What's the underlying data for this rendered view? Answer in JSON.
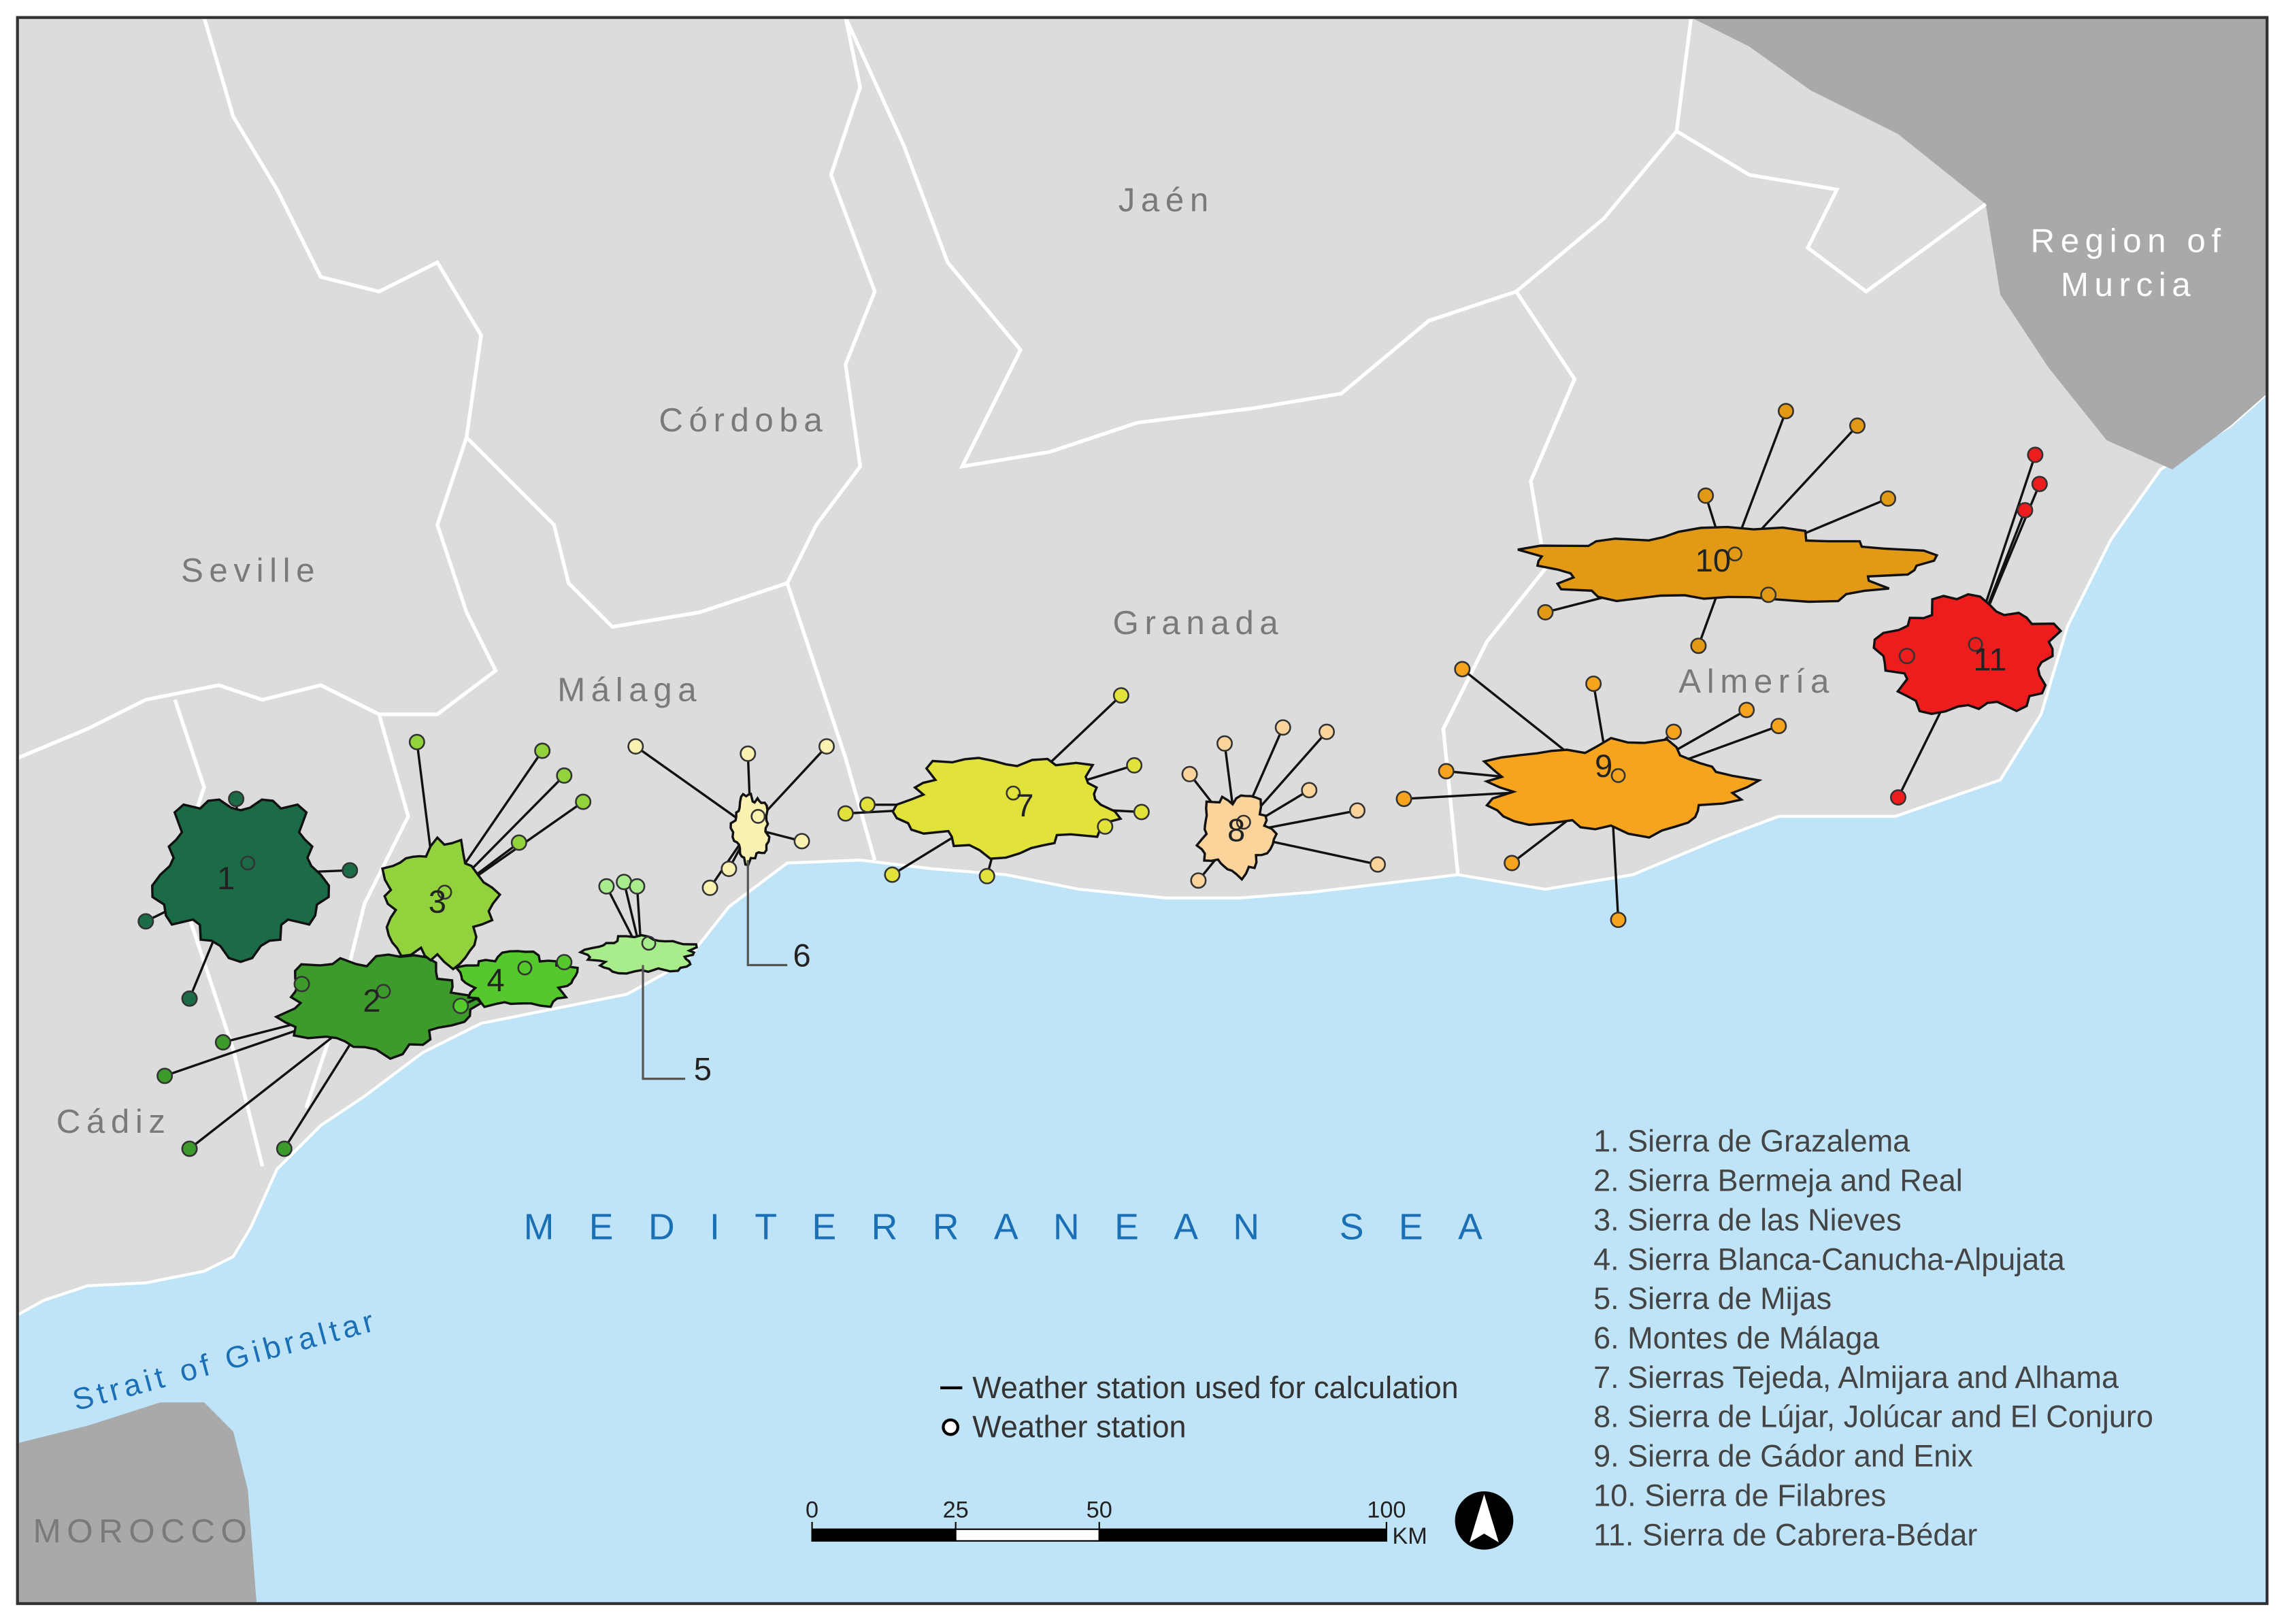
{
  "map": {
    "region_labels": [
      "Jaén",
      "Córdoba",
      "Seville",
      "Granada",
      "Málaga",
      "Almería",
      "Cádiz",
      "MOROCCO"
    ],
    "murcia_label": [
      "Region of",
      "Murcia"
    ],
    "sea_label": "MEDITERRANEAN SEA",
    "strait_label": "Strait of Gibraltar",
    "areas": [
      {
        "number": 1,
        "label": "1. Sierra de Grazalema",
        "color": "#1b6b47"
      },
      {
        "number": 2,
        "label": "2. Sierra Bermeja and Real",
        "color": "#3c9b2a"
      },
      {
        "number": 3,
        "label": "3. Sierra de las Nieves",
        "color": "#92d23c"
      },
      {
        "number": 4,
        "label": "4. Sierra Blanca-Canucha-Alpujata",
        "color": "#55c82e"
      },
      {
        "number": 5,
        "label": "5. Sierra de Mijas",
        "color": "#a9ec8c"
      },
      {
        "number": 6,
        "label": "6. Montes de Málaga",
        "color": "#fbf2b2"
      },
      {
        "number": 7,
        "label": "7. Sierras Tejeda, Almijara and Alhama",
        "color": "#e1e23a"
      },
      {
        "number": 8,
        "label": "8. Sierra de Lújar, Jolúcar and El Conjuro",
        "color": "#fbd49c"
      },
      {
        "number": 9,
        "label": "9. Sierra de Gádor and Enix",
        "color": "#f6a31e"
      },
      {
        "number": 10,
        "label": "10. Sierra de Filabres",
        "color": "#e29a16"
      },
      {
        "number": 11,
        "label": "11. Sierra de Cabrera-Bédar",
        "color": "#ee1d1d"
      }
    ],
    "legend": {
      "line": "Weather station used for calculation",
      "circle": "Weather station"
    },
    "scale": {
      "ticks": [
        0,
        25,
        50,
        100
      ],
      "unit": "KM"
    }
  }
}
